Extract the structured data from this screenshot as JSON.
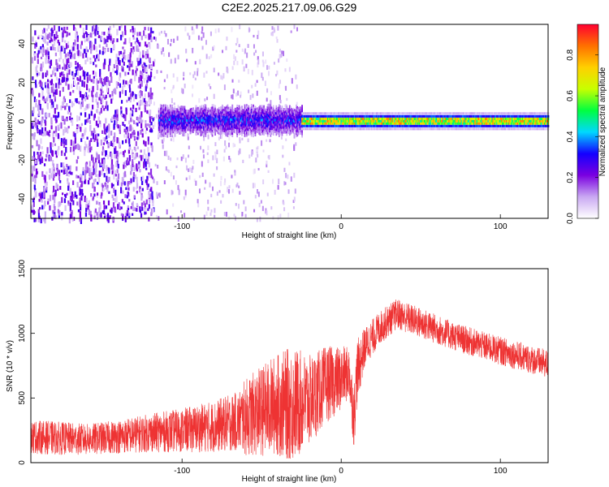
{
  "title": "C2E2.2025.217.09.06.G29",
  "chart_data": [
    {
      "type": "heatmap",
      "xlabel": "Height of straight line (km)",
      "ylabel": "Frequency (Hz)",
      "xlim": [
        -195,
        130
      ],
      "ylim": [
        -50,
        50
      ],
      "x_ticks": [
        -100,
        0,
        100
      ],
      "y_ticks": [
        -40,
        -20,
        0,
        20,
        40
      ],
      "x_tick_labels": [
        "-100",
        "0",
        "100"
      ],
      "y_tick_labels": [
        "-40",
        "-20",
        "0",
        "20",
        "40"
      ],
      "colorbar": {
        "label": "Normalized spectral amplitude",
        "range": [
          0.0,
          0.95
        ],
        "ticks": [
          0.0,
          0.2,
          0.4,
          0.6,
          0.8
        ],
        "tick_labels": [
          "0.0",
          "0.2",
          "0.4",
          "0.6",
          "0.8"
        ],
        "colors": [
          "#ffffff",
          "#c9a8f2",
          "#7a00e0",
          "#1400ff",
          "#00d8ff",
          "#00ff40",
          "#c8ff00",
          "#ffd000",
          "#ff7000",
          "#ff0030"
        ]
      },
      "features": [
        {
          "x_range": [
            -195,
            -118
          ],
          "freq_range": [
            -50,
            50
          ],
          "level": 0.25,
          "description_shown": "noise"
        },
        {
          "x_range": [
            -115,
            -25
          ],
          "freq_center": 0,
          "freq_halfwidth": 6,
          "level": 0.3
        },
        {
          "x_range": [
            -25,
            130
          ],
          "freq_center": 0,
          "freq_halfwidth": 2,
          "level": 0.85
        }
      ]
    },
    {
      "type": "line",
      "xlabel": "Height of straight line (km)",
      "ylabel": "SNR (10 * v/v)",
      "xlim": [
        -195,
        130
      ],
      "ylim": [
        0,
        1500
      ],
      "x_ticks": [
        -100,
        0,
        100
      ],
      "y_ticks": [
        0,
        500,
        1000,
        1500
      ],
      "x_tick_labels": [
        "-100",
        "0",
        "100"
      ],
      "y_tick_labels": [
        "0",
        "500",
        "1000",
        "1500"
      ],
      "line_color": "#ee3333",
      "series": [
        {
          "x": [
            -195,
            -180,
            -160,
            -140,
            -120,
            -100,
            -80,
            -65,
            -60,
            -50,
            -40,
            -30,
            -20,
            -10,
            0,
            5,
            8,
            10,
            15,
            25,
            35,
            50,
            70,
            90,
            110,
            130
          ],
          "mean": [
            200,
            190,
            180,
            200,
            230,
            250,
            280,
            320,
            350,
            400,
            450,
            450,
            480,
            600,
            650,
            700,
            350,
            700,
            900,
            1050,
            1150,
            1080,
            980,
            900,
            830,
            760
          ],
          "spread": [
            130,
            130,
            120,
            130,
            150,
            170,
            200,
            230,
            300,
            350,
            400,
            450,
            350,
            300,
            250,
            200,
            250,
            250,
            150,
            130,
            120,
            120,
            110,
            110,
            110,
            110
          ]
        }
      ]
    }
  ]
}
